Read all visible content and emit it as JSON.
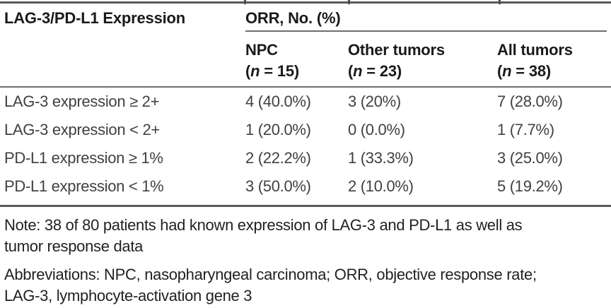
{
  "table": {
    "row_header": "LAG-3/PD-L1 Expression",
    "span_header": "ORR, No. (%)",
    "columns": [
      {
        "label": "NPC",
        "count_open": "(",
        "count_var": "n",
        "count_rest": " = 15)"
      },
      {
        "label": "Other tumors",
        "count_open": "(",
        "count_var": "n",
        "count_rest": " = 23)"
      },
      {
        "label": "All tumors",
        "count_open": "(",
        "count_var": "n",
        "count_rest": " = 38)"
      }
    ],
    "rows": [
      {
        "label": "LAG-3 expression ≥ 2+",
        "npc": "4 (40.0%)",
        "other": "3 (20%)",
        "all": "7 (28.0%)"
      },
      {
        "label": "LAG-3 expression < 2+",
        "npc": "1 (20.0%)",
        "other": "0 (0.0%)",
        "all": "1 (7.7%)"
      },
      {
        "label": "PD-L1 expression ≥ 1%",
        "npc": "2 (22.2%)",
        "other": "1 (33.3%)",
        "all": "3 (25.0%)"
      },
      {
        "label": "PD-L1 expression < 1%",
        "npc": "3 (50.0%)",
        "other": "2 (10.0%)",
        "all": "5 (19.2%)"
      }
    ]
  },
  "notes": {
    "note_lines": [
      "Note: 38 of 80 patients had known expression of LAG-3 and PD-L1 as well as",
      "tumor response data"
    ],
    "abbrev_lines": [
      "Abbreviations: NPC, nasopharyngeal carcinoma; ORR, objective response rate;",
      "LAG-3, lymphocyte-activation gene 3"
    ]
  },
  "colors": {
    "rule_heavy": "#58595b",
    "rule_light": "#6d6e71",
    "header_text": "#1a1a1a",
    "body_text": "#414042",
    "note_text": "#231f20"
  }
}
